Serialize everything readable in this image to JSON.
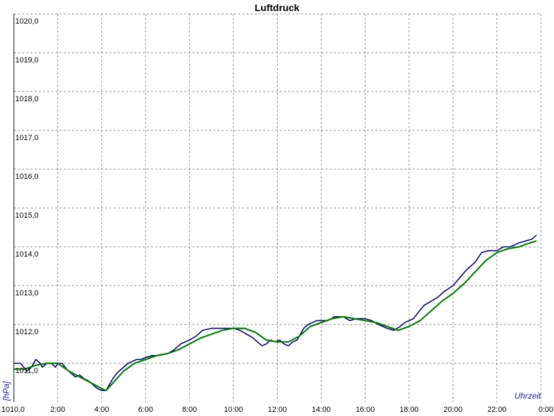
{
  "chart_data": {
    "type": "line",
    "title": "Luftdruck",
    "ylabel": "[hPa]",
    "xlabel": "Uhrzeit",
    "ylim": [
      1010,
      1020
    ],
    "xlim": [
      0,
      24
    ],
    "grid": true,
    "y_ticks": [
      {
        "value": 1010,
        "label": "1010,0"
      },
      {
        "value": 1011,
        "label": "1011,0"
      },
      {
        "value": 1012,
        "label": "1012,0"
      },
      {
        "value": 1013,
        "label": "1013,0"
      },
      {
        "value": 1014,
        "label": "1014,0"
      },
      {
        "value": 1015,
        "label": "1015,0"
      },
      {
        "value": 1016,
        "label": "1016,0"
      },
      {
        "value": 1017,
        "label": "1017,0"
      },
      {
        "value": 1018,
        "label": "1018,0"
      },
      {
        "value": 1019,
        "label": "1019,0"
      },
      {
        "value": 1020,
        "label": "1020,0"
      }
    ],
    "x_ticks": [
      {
        "value": 2,
        "label": "2:00"
      },
      {
        "value": 4,
        "label": "4:00"
      },
      {
        "value": 6,
        "label": "6:00"
      },
      {
        "value": 8,
        "label": "8:00"
      },
      {
        "value": 10,
        "label": "10:00"
      },
      {
        "value": 12,
        "label": "12:00"
      },
      {
        "value": 14,
        "label": "14:00"
      },
      {
        "value": 16,
        "label": "16:00"
      },
      {
        "value": 18,
        "label": "18:00"
      },
      {
        "value": 20,
        "label": "20:00"
      },
      {
        "value": 22,
        "label": "22:00"
      },
      {
        "value": 24,
        "label": "0:00"
      }
    ],
    "series": [
      {
        "color": "#00007a",
        "x": [
          0,
          0.3,
          0.6,
          0.8,
          1.0,
          1.2,
          1.3,
          1.5,
          1.7,
          1.9,
          2.0,
          2.2,
          2.4,
          2.6,
          2.8,
          3.0,
          3.2,
          3.4,
          3.6,
          3.8,
          4.0,
          4.2,
          4.35,
          4.5,
          4.7,
          4.9,
          5.0,
          5.2,
          5.4,
          5.6,
          5.8,
          6.0,
          6.3,
          6.6,
          7.0,
          7.3,
          7.6,
          8.0,
          8.3,
          8.6,
          9.0,
          9.3,
          9.6,
          10.0,
          10.3,
          10.6,
          10.9,
          11.1,
          11.3,
          11.5,
          11.7,
          11.9,
          12.1,
          12.3,
          12.5,
          12.7,
          12.9,
          13.0,
          13.2,
          13.4,
          13.6,
          13.8,
          14.0,
          14.3,
          14.6,
          15.0,
          15.3,
          15.6,
          16.0,
          16.3,
          16.6,
          17.0,
          17.3,
          17.6,
          17.8,
          18.0,
          18.2,
          18.4,
          18.7,
          19.0,
          19.3,
          19.6,
          20.0,
          20.3,
          20.6,
          21.0,
          21.3,
          21.6,
          22.0,
          22.3,
          22.6,
          23.0,
          23.3,
          23.6,
          23.8
        ],
        "y": [
          1011.0,
          1011.0,
          1010.8,
          1010.9,
          1011.1,
          1011.0,
          1010.9,
          1011.0,
          1011.0,
          1010.9,
          1011.0,
          1011.0,
          1010.85,
          1010.75,
          1010.65,
          1010.7,
          1010.6,
          1010.55,
          1010.45,
          1010.35,
          1010.3,
          1010.3,
          1010.45,
          1010.6,
          1010.75,
          1010.85,
          1010.9,
          1011.0,
          1011.05,
          1011.1,
          1011.1,
          1011.15,
          1011.2,
          1011.2,
          1011.25,
          1011.35,
          1011.5,
          1011.6,
          1011.7,
          1011.85,
          1011.9,
          1011.9,
          1011.9,
          1011.9,
          1011.85,
          1011.75,
          1011.65,
          1011.55,
          1011.45,
          1011.5,
          1011.6,
          1011.55,
          1011.6,
          1011.5,
          1011.45,
          1011.55,
          1011.6,
          1011.7,
          1011.9,
          1012.0,
          1012.05,
          1012.1,
          1012.1,
          1012.1,
          1012.2,
          1012.2,
          1012.1,
          1012.15,
          1012.15,
          1012.1,
          1012.0,
          1011.9,
          1011.85,
          1011.95,
          1012.05,
          1012.1,
          1012.15,
          1012.3,
          1012.5,
          1012.6,
          1012.7,
          1012.85,
          1013.0,
          1013.2,
          1013.4,
          1013.6,
          1013.85,
          1013.9,
          1013.9,
          1014.0,
          1014.0,
          1014.1,
          1014.15,
          1014.2,
          1014.3
        ]
      },
      {
        "color": "#008000",
        "x": [
          0,
          0.5,
          1.0,
          1.5,
          2.0,
          2.5,
          3.0,
          3.5,
          4.0,
          4.2,
          4.6,
          5.0,
          5.5,
          6.0,
          6.5,
          7.0,
          7.5,
          8.0,
          8.5,
          9.0,
          9.5,
          10.0,
          10.5,
          11.0,
          11.5,
          12.0,
          12.5,
          13.0,
          13.5,
          14.0,
          14.5,
          15.0,
          15.5,
          16.0,
          16.5,
          17.0,
          17.5,
          18.0,
          18.5,
          19.0,
          19.5,
          20.0,
          20.5,
          21.0,
          21.5,
          22.0,
          22.5,
          23.0,
          23.5,
          23.8
        ],
        "y": [
          1010.85,
          1010.85,
          1010.95,
          1011.0,
          1011.0,
          1010.8,
          1010.65,
          1010.5,
          1010.35,
          1010.3,
          1010.55,
          1010.8,
          1011.0,
          1011.1,
          1011.2,
          1011.25,
          1011.35,
          1011.5,
          1011.65,
          1011.75,
          1011.85,
          1011.9,
          1011.9,
          1011.8,
          1011.6,
          1011.55,
          1011.55,
          1011.7,
          1011.95,
          1012.05,
          1012.15,
          1012.2,
          1012.15,
          1012.1,
          1012.05,
          1011.95,
          1011.85,
          1011.95,
          1012.1,
          1012.35,
          1012.6,
          1012.8,
          1013.05,
          1013.35,
          1013.65,
          1013.85,
          1013.95,
          1014.0,
          1014.1,
          1014.15
        ]
      }
    ]
  }
}
